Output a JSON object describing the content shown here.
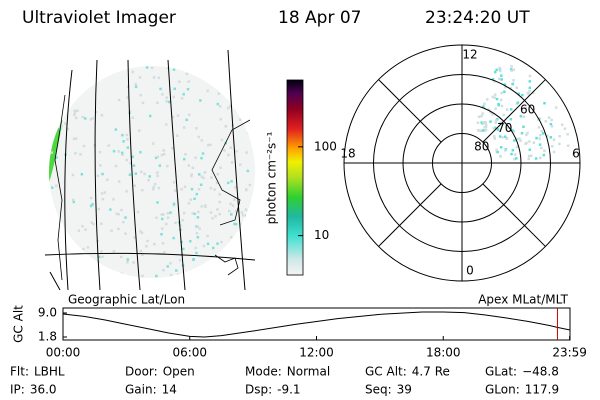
{
  "header": {
    "instrument": "Ultraviolet Imager",
    "date": "18 Apr 07",
    "time": "23:24:20 UT"
  },
  "map_label": "Geographic Lat/Lon",
  "polar": {
    "label": "Apex MLat/MLT",
    "rlim": [
      90,
      50
    ],
    "rticks": [
      80,
      70,
      60
    ],
    "hour_ticks": [
      12,
      6,
      0,
      18
    ]
  },
  "colorbar": {
    "label": "photon cm⁻²s⁻¹",
    "log": true,
    "clim": [
      3.6,
      566
    ],
    "ticks": [
      100,
      10
    ]
  },
  "chart_data": {
    "type": "line",
    "ylabel": "GC Alt",
    "x": [
      0,
      1,
      2,
      3,
      4,
      5,
      6,
      6.7,
      7.5,
      9,
      11,
      13,
      15,
      17,
      18,
      19,
      20,
      21,
      22,
      23,
      23.4,
      24
    ],
    "series": [
      {
        "color": "#000000",
        "values": [
          8.7,
          8.0,
          6.9,
          5.6,
          4.3,
          3.0,
          2.0,
          1.8,
          2.2,
          3.6,
          5.6,
          7.3,
          8.6,
          9.3,
          9.3,
          9.1,
          8.4,
          7.5,
          6.5,
          5.3,
          4.7,
          3.9
        ]
      }
    ],
    "xlim": [
      0,
      24
    ],
    "ylim": [
      0.9,
      10.5
    ],
    "xticks": [
      {
        "value": 0,
        "label": "00:00"
      },
      {
        "value": 6,
        "label": "06:00"
      },
      {
        "value": 12,
        "label": "12:00"
      },
      {
        "value": 18,
        "label": "18:00"
      },
      {
        "value": 23.983,
        "label": "23:59"
      }
    ],
    "yticks": [
      {
        "value": 9.0,
        "label": "9.0"
      },
      {
        "value": 1.8,
        "label": "1.8"
      }
    ],
    "marker": {
      "x": 23.406,
      "color": "#cc0000"
    }
  },
  "footer": {
    "rows": [
      [
        {
          "label": "Flt:",
          "value": "LBHL"
        },
        {
          "label": "Door:",
          "value": "Open"
        },
        {
          "label": "Mode:",
          "value": "Normal"
        },
        {
          "label": "GC Alt:",
          "value": "4.7 Re"
        },
        {
          "label": "GLat:",
          "value": "−48.8"
        }
      ],
      [
        {
          "label": "IP:",
          "value": "36.0"
        },
        {
          "label": "Gain:",
          "value": "14"
        },
        {
          "label": "Dsp:",
          "value": "-9.1"
        },
        {
          "label": "Seq:",
          "value": "39"
        },
        {
          "label": "GLon:",
          "value": "117.9"
        }
      ]
    ]
  }
}
